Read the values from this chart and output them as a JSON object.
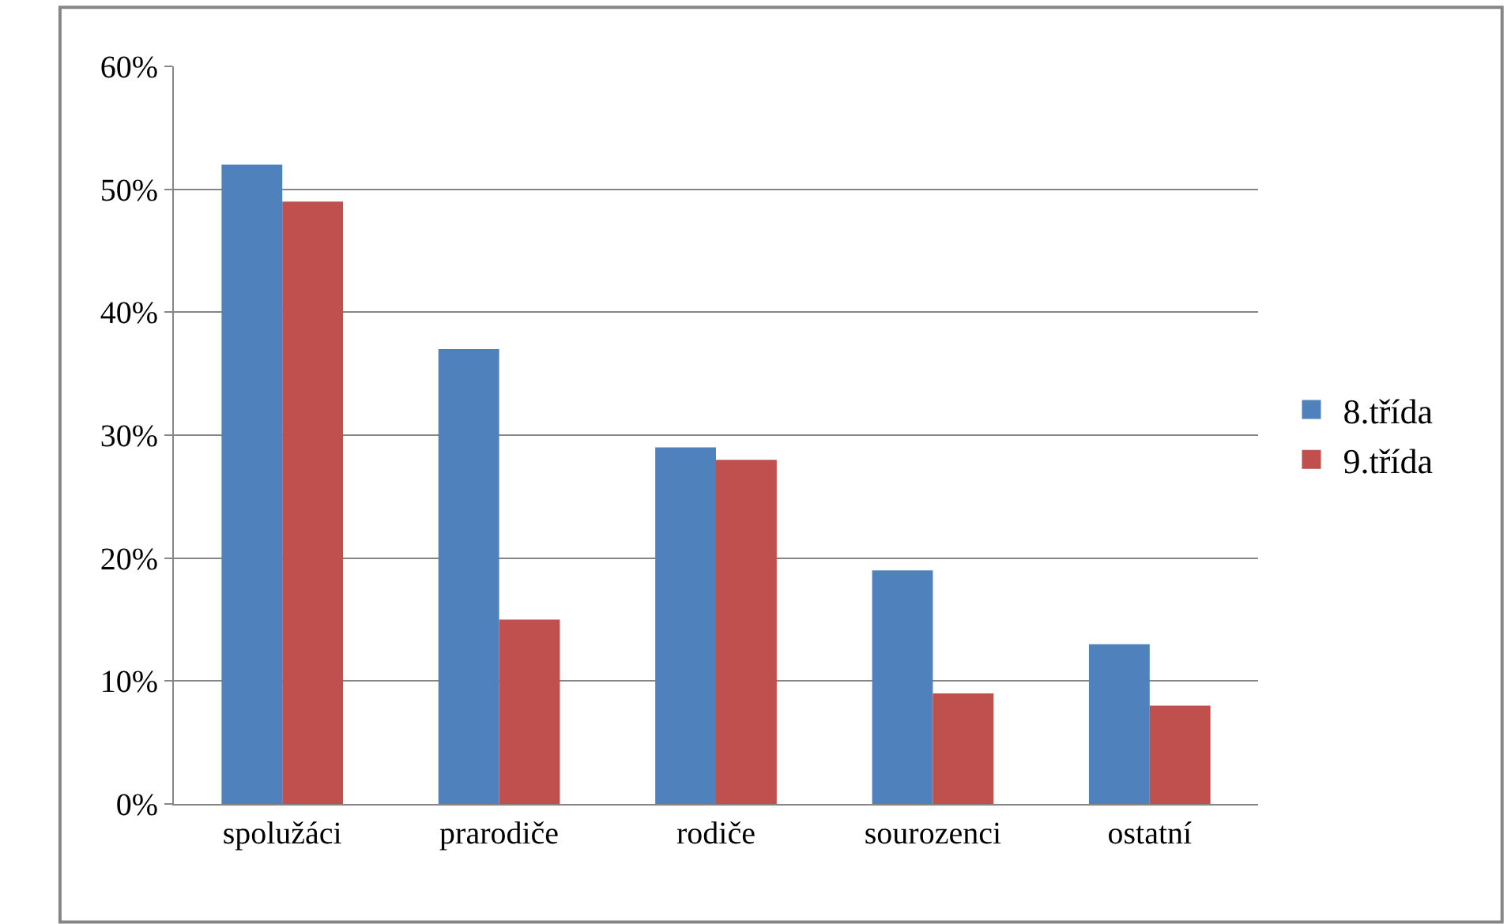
{
  "chart_data": {
    "type": "bar",
    "categories": [
      "spolužáci",
      "prarodiče",
      "rodiče",
      "sourozenci",
      "ostatní"
    ],
    "series": [
      {
        "name": "8.třída",
        "color": "#4f81bd",
        "values": [
          52,
          37,
          29,
          19,
          13
        ]
      },
      {
        "name": "9.třída",
        "color": "#c0504d",
        "values": [
          49,
          15,
          28,
          9,
          8
        ]
      }
    ],
    "ylim": [
      0,
      60
    ],
    "yticks": [
      {
        "value": 0,
        "label": "0%"
      },
      {
        "value": 10,
        "label": "10%"
      },
      {
        "value": 20,
        "label": "20%"
      },
      {
        "value": 30,
        "label": "30%"
      },
      {
        "value": 40,
        "label": "40%"
      },
      {
        "value": 50,
        "label": "50%"
      },
      {
        "value": 60,
        "label": "60%"
      }
    ],
    "grid": "y",
    "legend": "right"
  }
}
